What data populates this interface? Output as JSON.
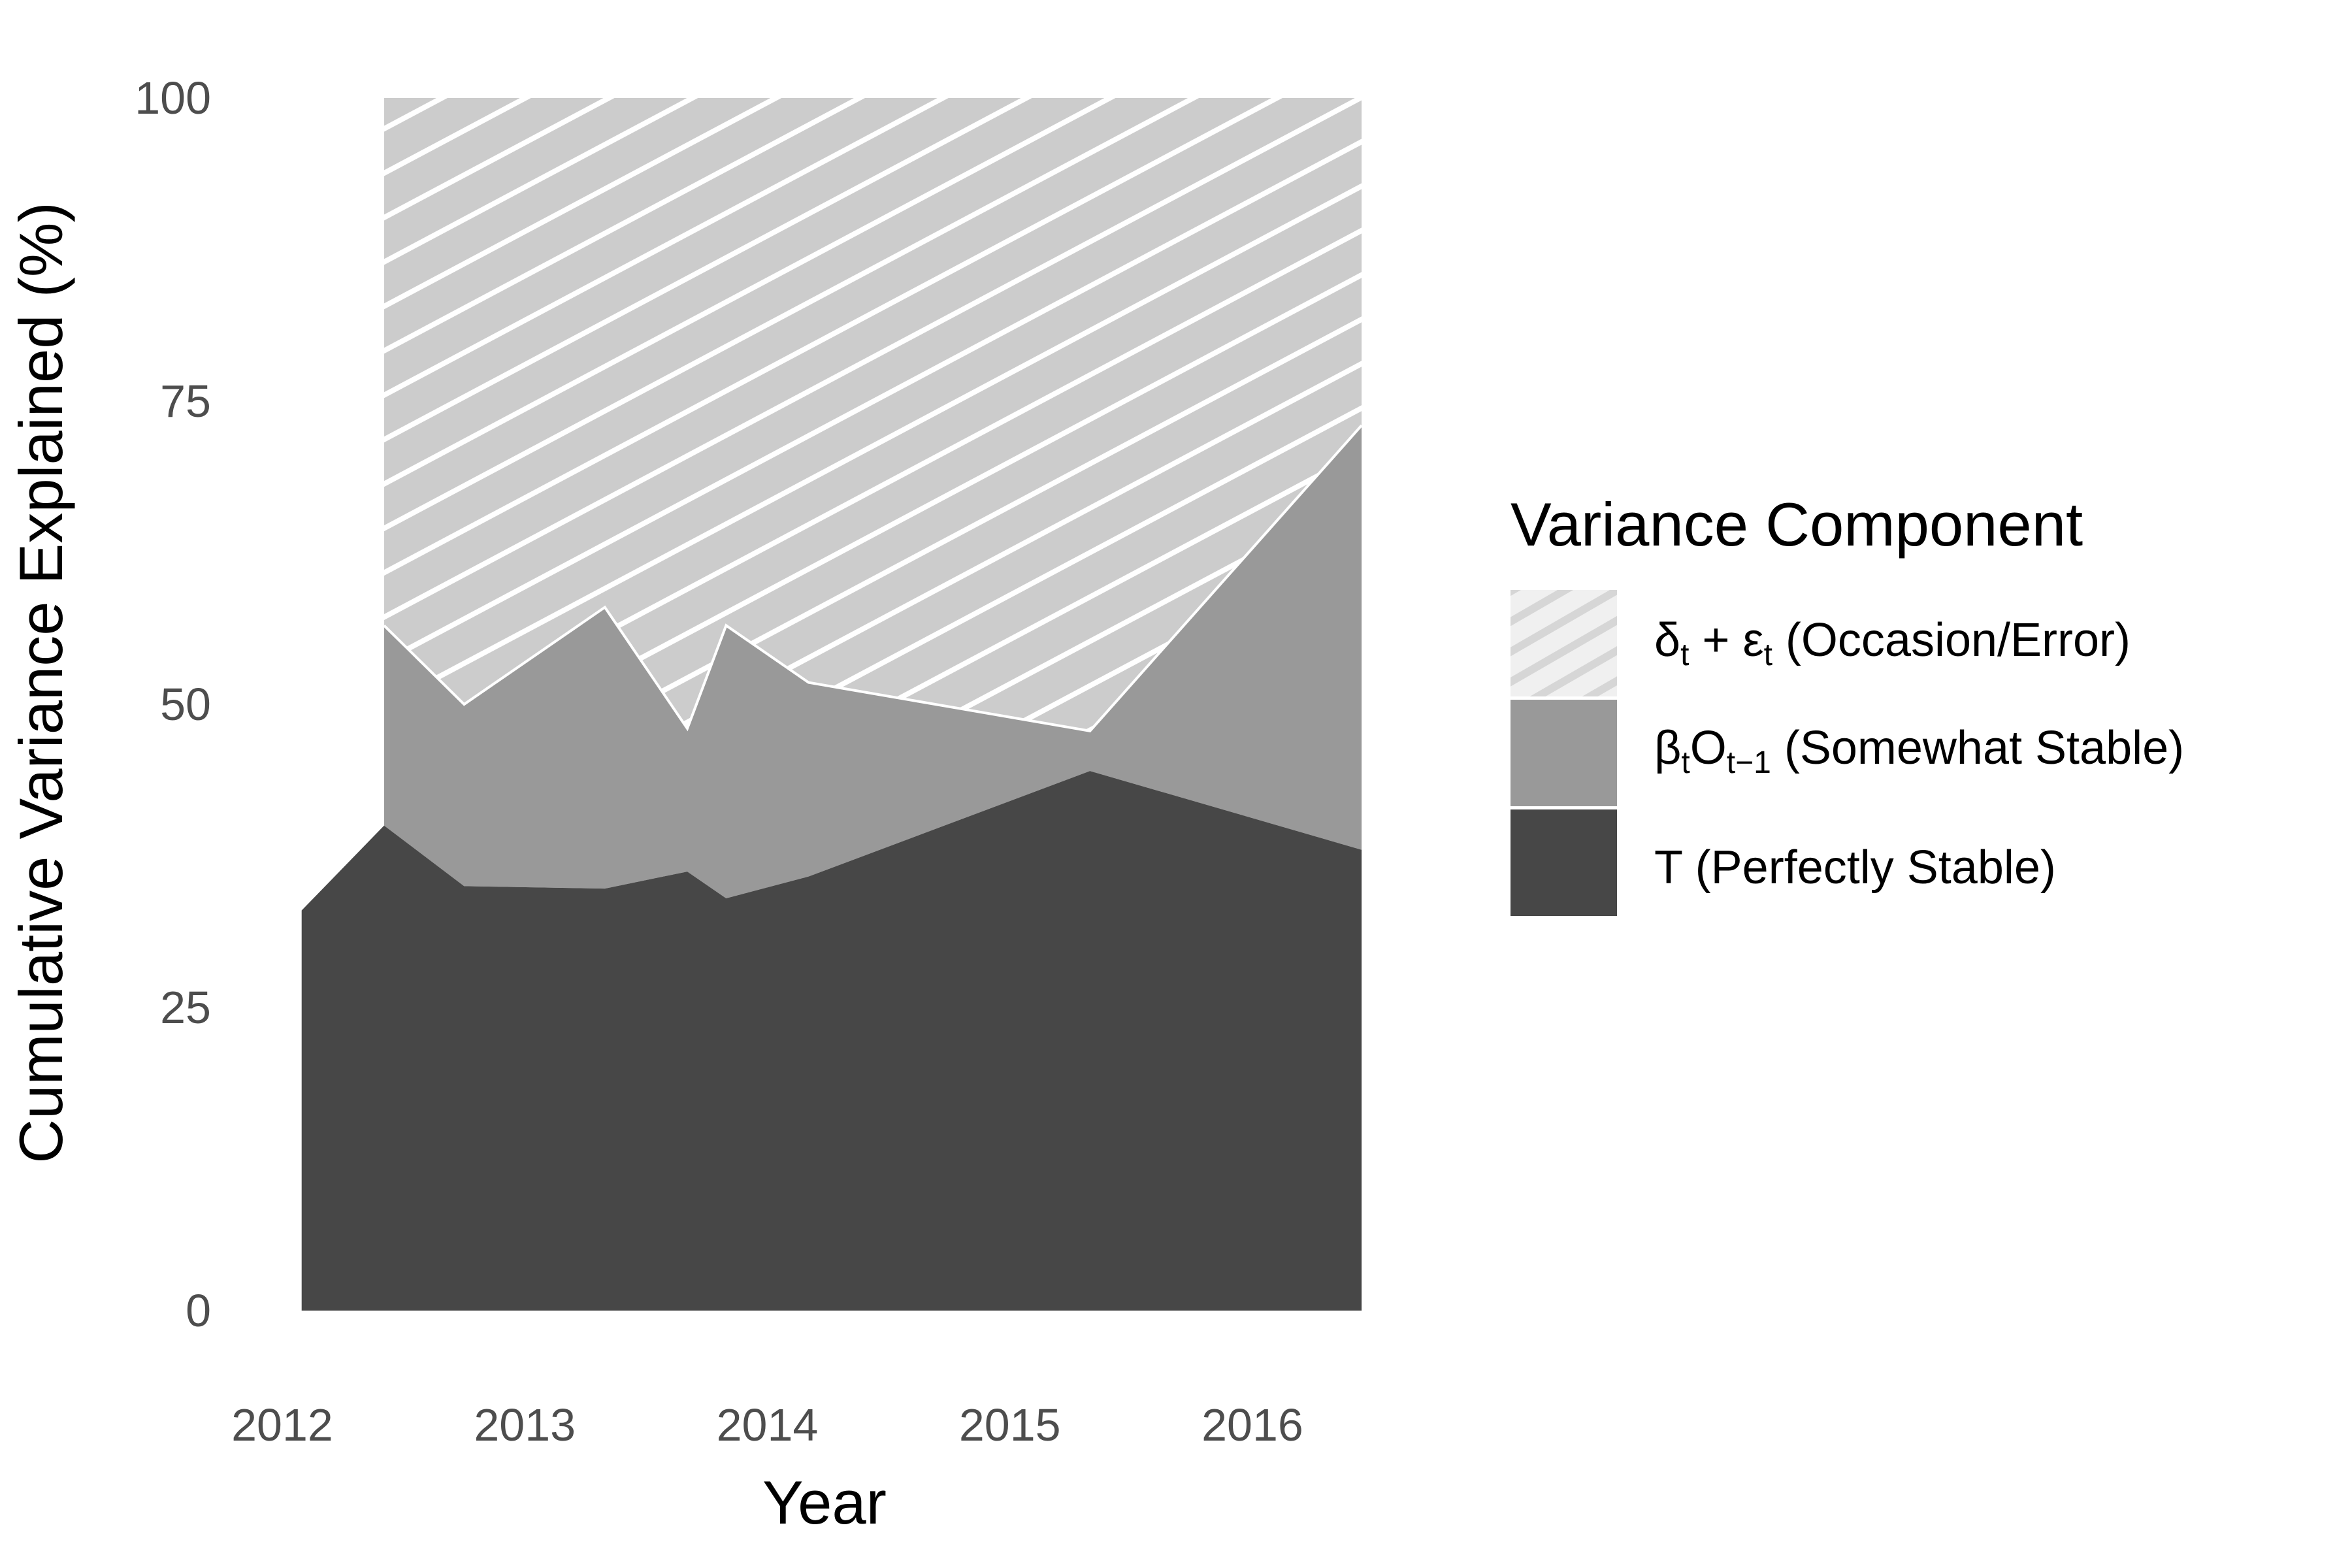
{
  "chart_data": {
    "type": "area",
    "stacked": true,
    "xlabel": "Year",
    "ylabel": "Cumulative Variance Explained (%)",
    "xlim": [
      2012,
      2016.45
    ],
    "ylim": [
      0,
      100
    ],
    "x_ticks": [
      "2012",
      "2013",
      "2014",
      "2015",
      "2016"
    ],
    "y_ticks": [
      "0",
      "25",
      "50",
      "75",
      "100"
    ],
    "grid": false,
    "legend": {
      "title": "Variance Component",
      "placement": "right",
      "items": [
        {
          "key": "occasion",
          "label": "δt + εt (Occasion/Error)"
        },
        {
          "key": "somewhat",
          "label": "βtOt−1 (Somewhat Stable)"
        },
        {
          "key": "perfect",
          "label": "T (Perfectly Stable)"
        }
      ]
    },
    "series": [
      {
        "key": "perfect",
        "name": "T (Perfectly Stable)",
        "color": "#474747",
        "points": [
          [
            2012.08,
            33
          ],
          [
            2012.42,
            40
          ],
          [
            2012.75,
            35
          ],
          [
            2013.33,
            34.8
          ],
          [
            2013.67,
            36.2
          ],
          [
            2013.83,
            34
          ],
          [
            2014.17,
            35.8
          ],
          [
            2015.33,
            44.5
          ],
          [
            2016.45,
            38
          ]
        ]
      },
      {
        "key": "somewhat",
        "name": "βtOt−1 (Somewhat Stable)",
        "color": "#999999",
        "points": [
          [
            2012.42,
            56.5
          ],
          [
            2012.75,
            50
          ],
          [
            2013.33,
            58
          ],
          [
            2013.67,
            48
          ],
          [
            2013.83,
            56.5
          ],
          [
            2014.17,
            51.8
          ],
          [
            2015.33,
            47.8
          ],
          [
            2016.45,
            73
          ]
        ]
      },
      {
        "key": "occasion",
        "name": "δt + εt (Occasion/Error)",
        "color": "#cccccc",
        "hatch": "#ffffff",
        "points": [
          [
            2012.42,
            100
          ],
          [
            2016.45,
            100
          ]
        ]
      }
    ]
  }
}
